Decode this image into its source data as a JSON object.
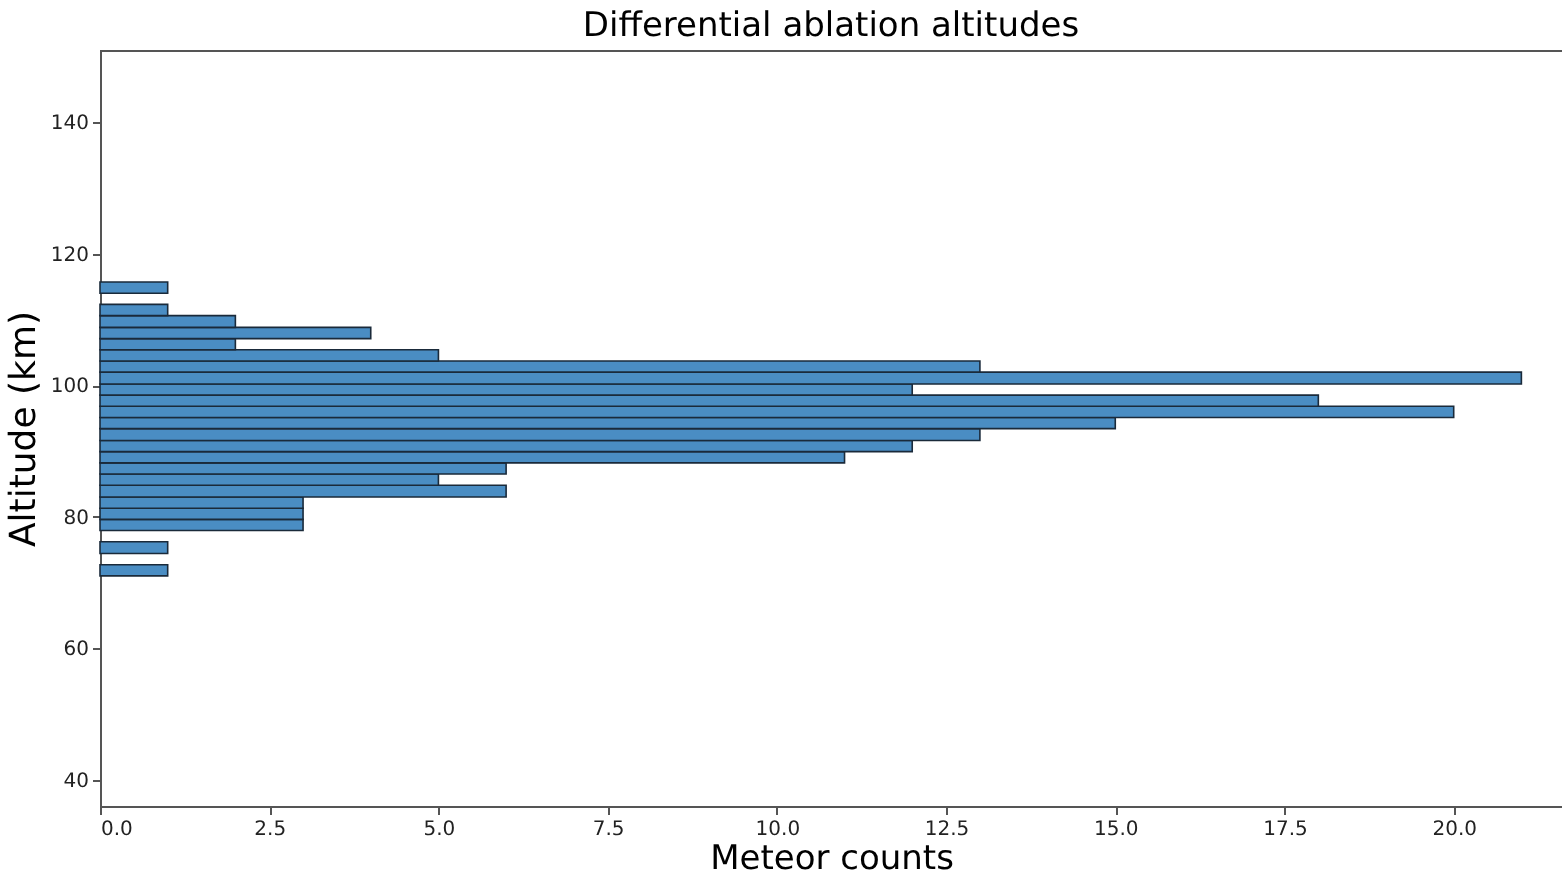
{
  "chart_data": {
    "type": "histogram",
    "orientation": "horizontal",
    "title": "Differential ablation altitudes",
    "xlabel": "Meteor counts",
    "ylabel": "Altitude (km)",
    "bins": [
      71.0,
      72.7,
      74.4,
      76.2,
      77.9,
      79.6,
      81.3,
      83.0,
      84.8,
      86.5,
      88.2,
      89.9,
      91.6,
      93.4,
      95.1,
      96.8,
      98.5,
      100.2,
      102.0,
      103.7,
      105.4,
      107.1,
      108.8,
      110.6,
      112.3,
      114.0,
      115.7
    ],
    "values": [
      1,
      0,
      1,
      0,
      3,
      3,
      3,
      6,
      5,
      6,
      11,
      12,
      13,
      15,
      20,
      18,
      12,
      21,
      13,
      5,
      2,
      4,
      2,
      1,
      0,
      1
    ],
    "color": "#4a8dc3",
    "xlim": [
      0,
      21.6
    ],
    "xticks": [
      {
        "value": 0,
        "label": "0.0"
      },
      {
        "value": 2.5,
        "label": "2.5"
      },
      {
        "value": 5,
        "label": "5.0"
      },
      {
        "value": 7.5,
        "label": "7.5"
      },
      {
        "value": 10,
        "label": "10.0"
      },
      {
        "value": 12.5,
        "label": "12.5"
      },
      {
        "value": 15,
        "label": "15.0"
      },
      {
        "value": 17.5,
        "label": "17.5"
      },
      {
        "value": 20,
        "label": "20.0"
      }
    ],
    "ylim": [
      36,
      151
    ],
    "yticks": [
      40,
      60,
      80,
      100,
      120,
      140
    ],
    "grid": false
  }
}
